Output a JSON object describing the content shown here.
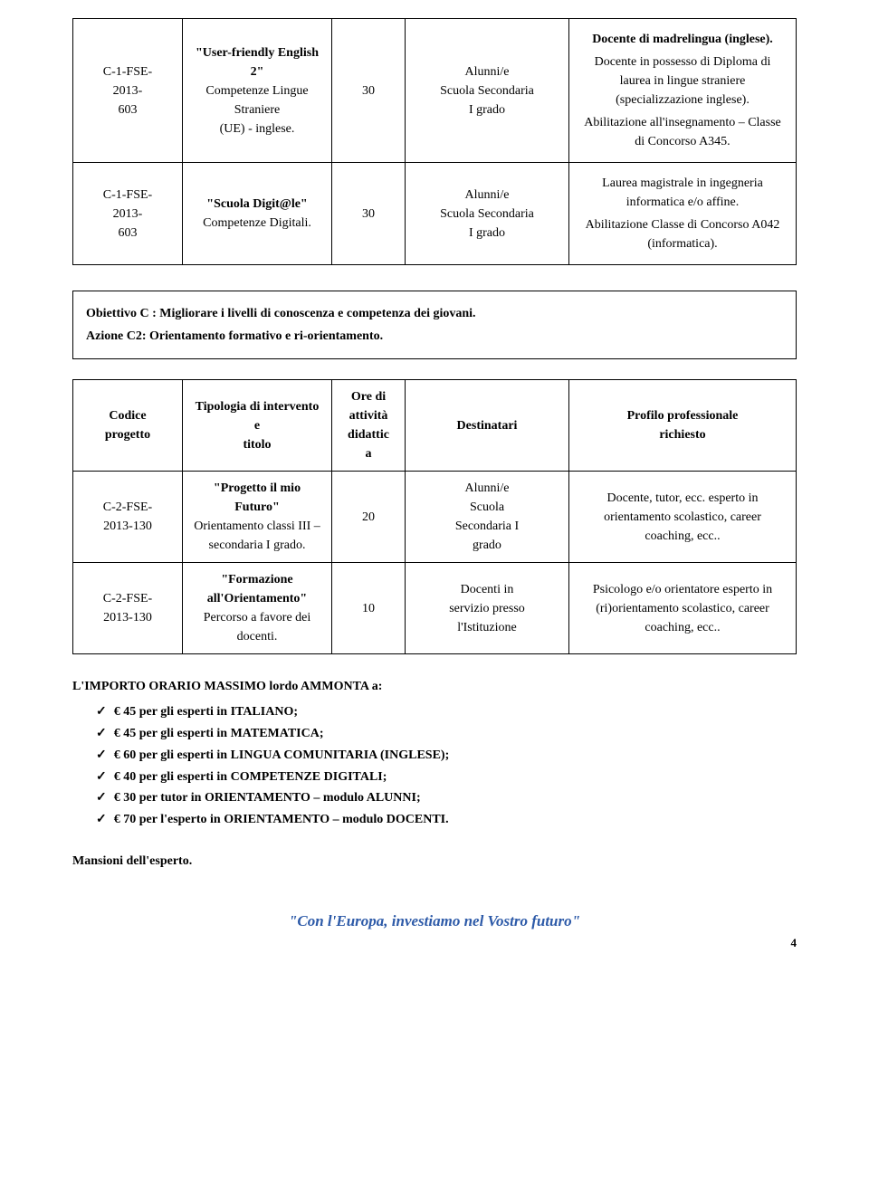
{
  "table1": {
    "rows": [
      {
        "code_lines": [
          "C-1-FSE-",
          "2013-",
          "603"
        ],
        "title_strong": "\"User-friendly English 2\"",
        "title_sub": [
          "Competenze Lingue Straniere",
          "(UE) - inglese."
        ],
        "ore": "30",
        "dest": [
          "Alunni/e",
          "Scuola Secondaria",
          "I grado"
        ],
        "profilo": [
          {
            "text": "Docente di madrelingua (inglese).",
            "bold": true
          },
          {
            "text": "Docente in possesso di Diploma di laurea in lingue straniere (specializzazione inglese).",
            "bold": false
          },
          {
            "text": "Abilitazione all'insegnamento – Classe di Concorso A345.",
            "bold": false
          }
        ]
      },
      {
        "code_lines": [
          "C-1-FSE-",
          "2013-",
          "603"
        ],
        "title_strong": "\"Scuola Digit@le\"",
        "title_sub": [
          "Competenze Digitali."
        ],
        "ore": "30",
        "dest": [
          "Alunni/e",
          "Scuola Secondaria",
          "I grado"
        ],
        "profilo": [
          {
            "text": "Laurea magistrale in ingegneria informatica e/o affine.",
            "bold": false
          },
          {
            "text": "Abilitazione Classe di Concorso A042 (informatica).",
            "bold": false
          }
        ]
      }
    ]
  },
  "section_header": {
    "line1": "Obiettivo C : Migliorare i livelli di conoscenza e competenza dei giovani.",
    "line2": "Azione C2: Orientamento formativo e ri-orientamento."
  },
  "table2": {
    "headers": {
      "c1": [
        "Codice",
        "progetto"
      ],
      "c2": [
        "Tipologia di intervento e",
        "titolo"
      ],
      "c3": [
        "Ore di",
        "attività",
        "didattic",
        "a"
      ],
      "c4": "Destinatari",
      "c5": [
        "Profilo professionale",
        "richiesto"
      ]
    },
    "rows": [
      {
        "code_lines": [
          "C-2-FSE-",
          "2013-130"
        ],
        "title_strong": "\"Progetto il mio Futuro\"",
        "title_sub": [
          "Orientamento classi III –",
          "secondaria I grado."
        ],
        "ore": "20",
        "dest": [
          "Alunni/e",
          "Scuola",
          "Secondaria I",
          "grado"
        ],
        "profilo": "Docente, tutor, ecc. esperto in orientamento scolastico, career coaching, ecc.."
      },
      {
        "code_lines": [
          "C-2-FSE-",
          "2013-130"
        ],
        "title_strong": "\"Formazione all'Orientamento\"",
        "title_sub": [
          "Percorso a favore dei docenti."
        ],
        "ore": "10",
        "dest": [
          "Docenti in",
          "servizio presso",
          "l'Istituzione"
        ],
        "profilo": "Psicologo e/o orientatore esperto in (ri)orientamento scolastico, career coaching, ecc.."
      }
    ]
  },
  "importo": {
    "head": "L'IMPORTO  ORARIO  MASSIMO lordo  AMMONTA a:",
    "items": [
      "€ 45 per gli esperti in ITALIANO;",
      "€ 45 per gli esperti in MATEMATICA;",
      "€ 60 per gli esperti in LINGUA COMUNITARIA (INGLESE);",
      "€ 40 per gli esperti in COMPETENZE DIGITALI;",
      "€ 30 per tutor in ORIENTAMENTO – modulo ALUNNI;",
      "€ 70 per l'esperto in ORIENTAMENTO – modulo DOCENTI."
    ]
  },
  "mansioni": "Mansioni dell'esperto.",
  "footer": "\"Con l'Europa, investiamo nel Vostro futuro\"",
  "page_num": "4",
  "colors": {
    "footer": "#2d5aa8"
  }
}
